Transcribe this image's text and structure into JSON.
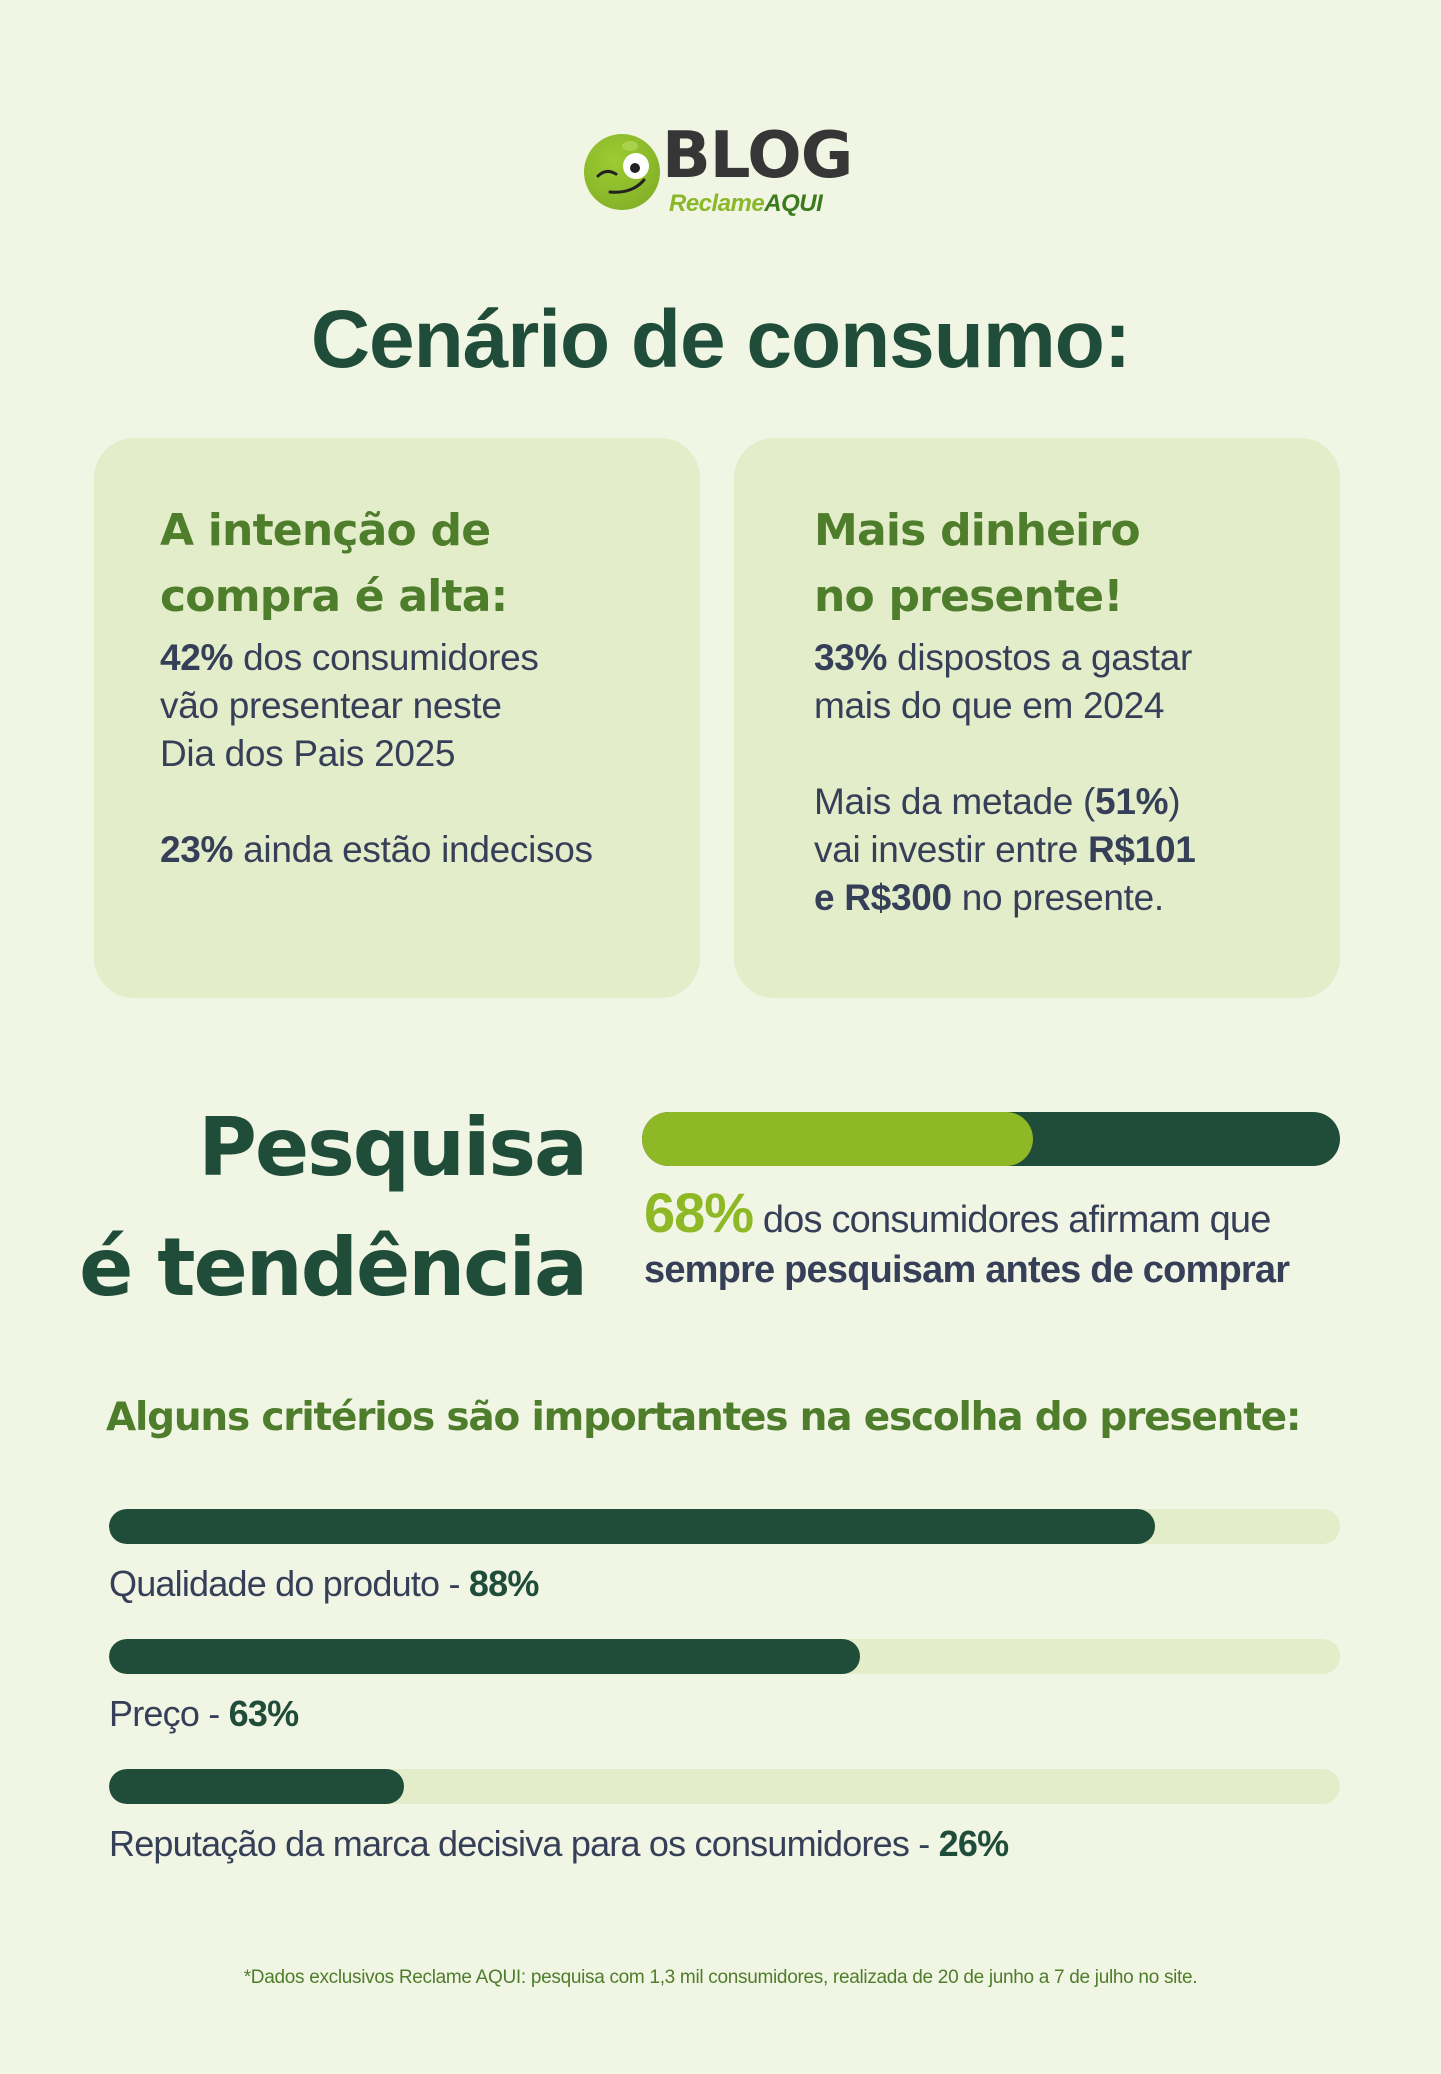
{
  "logo": {
    "blog": "BLOG",
    "sub_reclame": "Reclame",
    "sub_aqui": "AQUI",
    "icon": "winking-ball-icon"
  },
  "title": "Cenário de consumo:",
  "cards": [
    {
      "heading_line1": "A intenção de",
      "heading_line2": "compra é alta:",
      "p1_bold": "42%",
      "p1_line1": " dos consumidores",
      "p1_line2": "vão presentear neste",
      "p1_line3": "Dia dos Pais 2025",
      "p2_bold": "23%",
      "p2_text": " ainda estão indecisos"
    },
    {
      "heading_line1": "Mais dinheiro",
      "heading_line2": "no presente!",
      "p1_bold": "33%",
      "p1_line1": " dispostos a gastar",
      "p1_line2": "mais do que em 2024",
      "p2_text1": "Mais da metade (",
      "p2_bold1": "51%",
      "p2_text2": ")",
      "p2_text3": "vai investir entre ",
      "p2_bold2": "R$101",
      "p2_bold3": "e R$300",
      "p2_text4": " no presente."
    }
  ],
  "research": {
    "title_line1": "Pesquisa",
    "title_line2": "é tendência",
    "value": 68,
    "fill_width": "56%",
    "pct_label": "68%",
    "text1": " dos consumidores afirmam que",
    "text2_bold": "sempre pesquisam antes de comprar",
    "colors": {
      "fill": "#8fb826",
      "track": "#1f4d3a"
    }
  },
  "criteria": {
    "title": "Alguns critérios são importantes na escolha do presente:",
    "items": [
      {
        "label": "Qualidade do produto - ",
        "pct": "88%",
        "value": 88,
        "width": "85%"
      },
      {
        "label": "Preço - ",
        "pct": "63%",
        "value": 63,
        "width": "61%"
      },
      {
        "label": "Reputação da marca decisiva para os consumidores - ",
        "pct": "26%",
        "value": 26,
        "width": "24%"
      }
    ]
  },
  "footnote": "*Dados exclusivos Reclame AQUI: pesquisa com 1,3 mil consumidores, realizada de 20 de junho a 7 de julho no site.",
  "chart_data": {
    "type": "bar",
    "title": "Alguns critérios são importantes na escolha do presente:",
    "categories": [
      "Qualidade do produto",
      "Preço",
      "Reputação da marca decisiva para os consumidores"
    ],
    "values": [
      88,
      63,
      26
    ],
    "xlabel": "",
    "ylabel": "%",
    "ylim": [
      0,
      100
    ],
    "orientation": "horizontal"
  },
  "colors": {
    "background": "#f1f5e3",
    "card": "#e3edca",
    "dark_green": "#1f4d3a",
    "mid_green": "#4e7d2c",
    "lime": "#8fb826",
    "text": "#363f58"
  }
}
